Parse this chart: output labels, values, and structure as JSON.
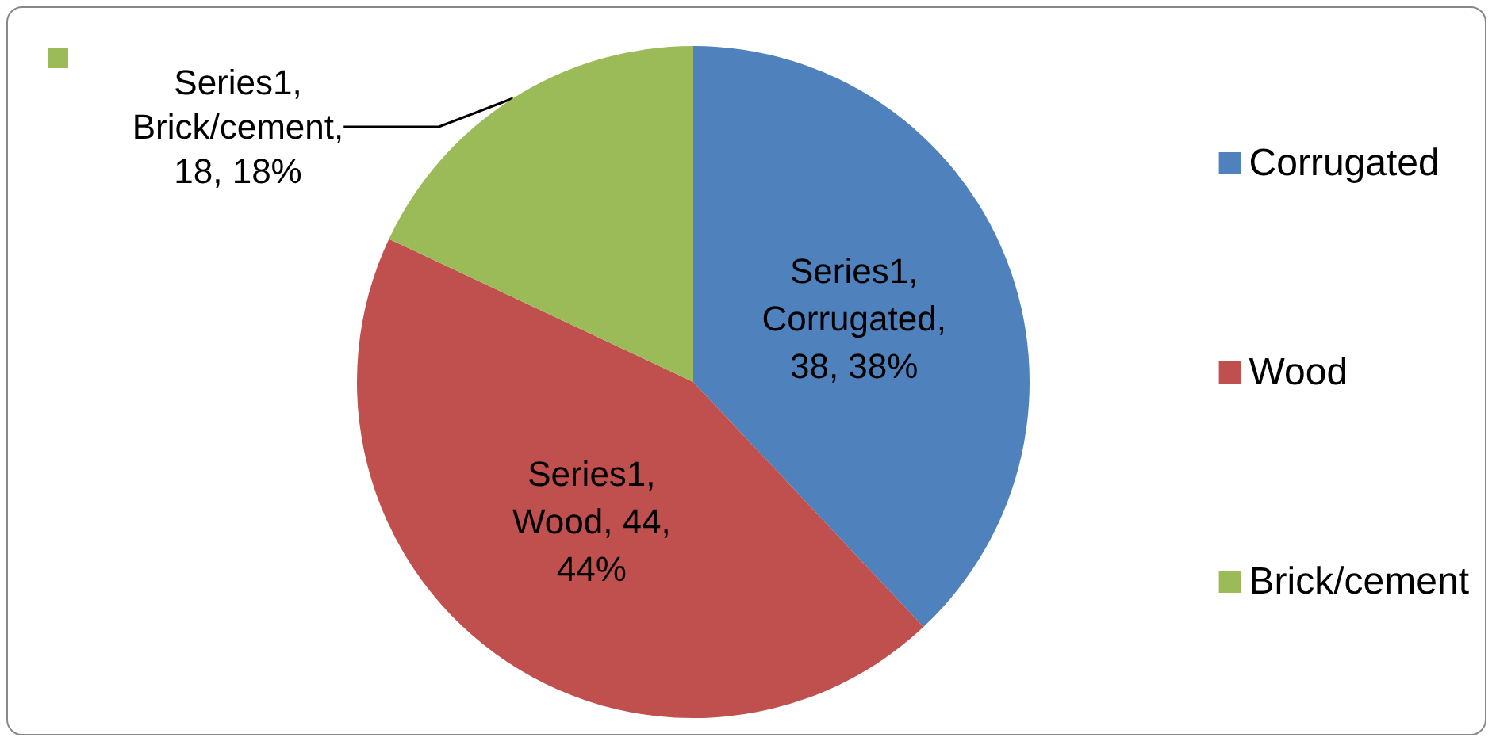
{
  "chart_data": {
    "type": "pie",
    "categories": [
      "Corrugated",
      "Wood",
      "Brick/cement"
    ],
    "values": [
      38,
      44,
      18
    ],
    "colors": [
      "#4f81bd",
      "#c0504d",
      "#9bbb59"
    ],
    "value_labels": [
      "Series1, Corrugated, 38, 38%",
      "Series1, Wood, 44, 44%",
      "Series1, Brick/cement, 18, 18%"
    ],
    "legend": "right"
  }
}
